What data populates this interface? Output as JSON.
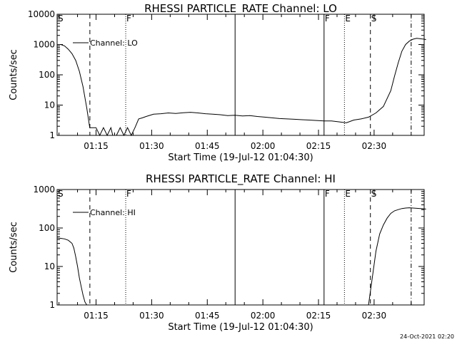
{
  "chart_data": [
    {
      "type": "line",
      "title": "RHESSI PARTICLE_RATE Channel: LO",
      "xlabel": "Start Time (19-Jul-12 01:04:30)",
      "ylabel": "Counts/sec",
      "yscale": "log",
      "ylim": [
        1,
        10000
      ],
      "xlim_minutes_utc": [
        "01:04:30",
        "02:43:30"
      ],
      "x_ticks": [
        "01:15",
        "01:30",
        "01:45",
        "02:00",
        "02:15",
        "02:30"
      ],
      "y_ticks": [
        "1",
        "10",
        "100",
        "1000",
        "10000"
      ],
      "legend": {
        "position": "top-left",
        "entries": [
          "Channel: LO"
        ]
      },
      "event_markers": [
        {
          "label": "S",
          "time": "01:04:30",
          "style": "none"
        },
        {
          "label": "",
          "time": "01:13:20",
          "style": "dashed"
        },
        {
          "label": "F",
          "time": "01:23:00",
          "style": "dotted"
        },
        {
          "label": "",
          "time": "01:52:30",
          "style": "solid"
        },
        {
          "label": "F",
          "time": "02:16:30",
          "style": "solid"
        },
        {
          "label": "",
          "time": "02:22:00",
          "style": "dotted"
        },
        {
          "label": "E",
          "time": "02:22:00",
          "style": "none"
        },
        {
          "label": "S",
          "time": "02:29:00",
          "style": "dashed"
        },
        {
          "label": "",
          "time": "02:40:00",
          "style": "dashdot"
        }
      ],
      "series": [
        {
          "name": "Channel: LO",
          "x_minutes": [
            0,
            1,
            2,
            3,
            4,
            5,
            6,
            7,
            8,
            8.8,
            9.5,
            10.5,
            11.5,
            12.5,
            13.5,
            14.5,
            15,
            16,
            17,
            18,
            19,
            20,
            21,
            22,
            23,
            24,
            26,
            28,
            30,
            32,
            34,
            36,
            38,
            40,
            42,
            44,
            46,
            48,
            50,
            52,
            54,
            56,
            58,
            60,
            62,
            64,
            66,
            68,
            70,
            72,
            74,
            76,
            78,
            80,
            82,
            84,
            86,
            88,
            90,
            91,
            92,
            93,
            94,
            95,
            96,
            97,
            98,
            99,
            99.5
          ],
          "counts_per_sec": [
            1000,
            1000,
            900,
            700,
            500,
            300,
            130,
            40,
            8,
            1.8,
            1.8,
            1.8,
            1,
            1.8,
            1,
            1.8,
            1,
            1,
            1.8,
            1,
            1.8,
            1,
            1.8,
            3.5,
            3.8,
            4.2,
            5,
            5.2,
            5.5,
            5.3,
            5.6,
            5.8,
            5.5,
            5.2,
            5.0,
            4.8,
            4.5,
            4.6,
            4.4,
            4.5,
            4.2,
            4.0,
            3.8,
            3.6,
            3.5,
            3.4,
            3.3,
            3.2,
            3.1,
            3.0,
            3.0,
            2.8,
            2.6,
            3.2,
            3.5,
            4.0,
            5.5,
            9,
            30,
            90,
            250,
            600,
            1000,
            1300,
            1500,
            1600,
            1550,
            1500,
            1450
          ]
        }
      ]
    },
    {
      "type": "line",
      "title": "RHESSI PARTICLE_RATE Channel: HI",
      "xlabel": "Start Time (19-Jul-12 01:04:30)",
      "ylabel": "Counts/sec",
      "yscale": "log",
      "ylim": [
        1,
        1000
      ],
      "xlim_minutes_utc": [
        "01:04:30",
        "02:43:30"
      ],
      "x_ticks": [
        "01:15",
        "01:30",
        "01:45",
        "02:00",
        "02:15",
        "02:30"
      ],
      "y_ticks": [
        "1",
        "10",
        "100",
        "1000"
      ],
      "legend": {
        "position": "top-left",
        "entries": [
          "Channel: HI"
        ]
      },
      "event_markers": [
        {
          "label": "S",
          "time": "01:04:30",
          "style": "none"
        },
        {
          "label": "",
          "time": "01:13:20",
          "style": "dashed"
        },
        {
          "label": "F",
          "time": "01:23:00",
          "style": "dotted"
        },
        {
          "label": "",
          "time": "01:52:30",
          "style": "solid"
        },
        {
          "label": "F",
          "time": "02:16:30",
          "style": "solid"
        },
        {
          "label": "",
          "time": "02:22:00",
          "style": "dotted"
        },
        {
          "label": "E",
          "time": "02:22:00",
          "style": "none"
        },
        {
          "label": "S",
          "time": "02:29:00",
          "style": "dashed"
        },
        {
          "label": "",
          "time": "02:40:00",
          "style": "dashdot"
        }
      ],
      "series": [
        {
          "name": "Channel: HI",
          "x_minutes": [
            0,
            1,
            2,
            3,
            4,
            4.5,
            5,
            5.5,
            6,
            6.5,
            7,
            7.5,
            8
          ],
          "counts_per_sec": [
            55,
            54,
            52,
            48,
            40,
            30,
            18,
            10,
            5,
            3,
            1.8,
            1.2,
            1
          ]
        },
        {
          "name": "Channel: HI",
          "x_minutes": [
            84,
            85,
            86,
            87,
            88,
            89,
            90,
            91,
            92,
            93,
            94,
            95,
            96,
            97,
            98,
            99,
            99.5
          ],
          "counts_per_sec": [
            1,
            5,
            25,
            70,
            120,
            180,
            240,
            280,
            300,
            320,
            330,
            335,
            330,
            325,
            320,
            315,
            310
          ]
        }
      ]
    }
  ],
  "timestamp": "24-Oct-2021 02:20"
}
